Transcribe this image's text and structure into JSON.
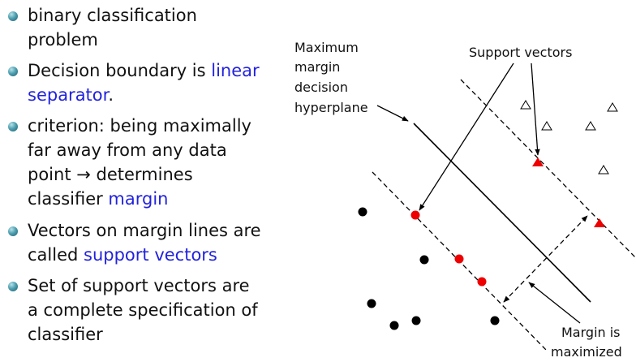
{
  "bullets": [
    {
      "parts": [
        {
          "text": "binary classification problem",
          "highlight": false
        }
      ]
    },
    {
      "parts": [
        {
          "text": "Decision boundary is ",
          "highlight": false
        },
        {
          "text": "linear separator",
          "highlight": true
        },
        {
          "text": ".",
          "highlight": false
        }
      ]
    },
    {
      "parts": [
        {
          "text": "criterion: being maximally far away from any data point → determines classifier ",
          "highlight": false
        },
        {
          "text": "margin",
          "highlight": true
        }
      ]
    },
    {
      "parts": [
        {
          "text": "Vectors on margin lines are called ",
          "highlight": false
        },
        {
          "text": "support vectors",
          "highlight": true
        }
      ]
    },
    {
      "parts": [
        {
          "text": "Set of support vectors are a complete specification of classifier",
          "highlight": false
        }
      ]
    }
  ],
  "diagram": {
    "label_hyperplane": [
      "Maximum",
      "margin",
      "decision",
      "hyperplane"
    ],
    "label_support": "Support vectors",
    "label_margin": [
      "Margin is",
      "maximized"
    ],
    "colors": {
      "highlight_text": "#2222dd",
      "support_vector": "#ee0000",
      "point": "#000000",
      "bullet_ball": "#3a8fa3"
    }
  }
}
